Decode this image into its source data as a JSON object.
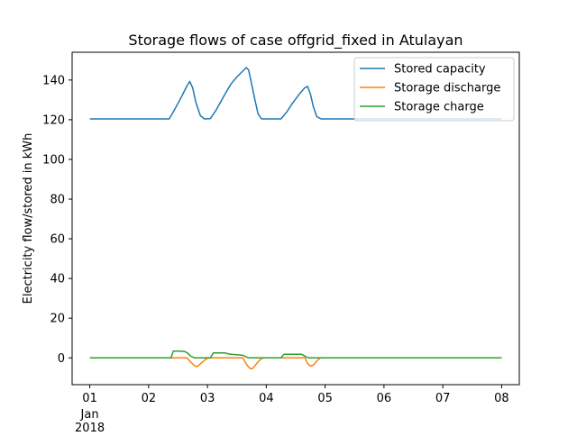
{
  "chart_data": {
    "type": "line",
    "title": "Storage flows of case offgrid_fixed in Atulayan",
    "xlabel": "",
    "ylabel": "Electricity flow/stored in kWh",
    "xlim": [
      -0.3,
      7.3
    ],
    "ylim": [
      -13.5,
      154
    ],
    "x_ticks": [
      {
        "x": 0,
        "label": "01",
        "sub": [
          "Jan",
          "2018"
        ]
      },
      {
        "x": 1,
        "label": "02",
        "sub": []
      },
      {
        "x": 2,
        "label": "03",
        "sub": []
      },
      {
        "x": 3,
        "label": "04",
        "sub": []
      },
      {
        "x": 4,
        "label": "05",
        "sub": []
      },
      {
        "x": 5,
        "label": "06",
        "sub": []
      },
      {
        "x": 6,
        "label": "07",
        "sub": []
      },
      {
        "x": 7,
        "label": "08",
        "sub": []
      }
    ],
    "y_ticks": [
      0,
      20,
      40,
      60,
      80,
      100,
      120,
      140
    ],
    "grid": false,
    "legend_position": "top-right",
    "series": [
      {
        "name": "Stored capacity",
        "color": "#1f77b4",
        "points": [
          [
            0.0,
            120.4
          ],
          [
            1.35,
            120.4
          ],
          [
            1.42,
            124
          ],
          [
            1.55,
            131
          ],
          [
            1.65,
            137
          ],
          [
            1.7,
            139.3
          ],
          [
            1.75,
            136
          ],
          [
            1.8,
            129
          ],
          [
            1.88,
            122
          ],
          [
            1.95,
            120.4
          ],
          [
            2.05,
            120.6
          ],
          [
            2.15,
            125
          ],
          [
            2.3,
            133
          ],
          [
            2.4,
            138
          ],
          [
            2.5,
            141.5
          ],
          [
            2.6,
            144.5
          ],
          [
            2.66,
            146.3
          ],
          [
            2.7,
            145
          ],
          [
            2.75,
            138
          ],
          [
            2.8,
            131
          ],
          [
            2.86,
            123
          ],
          [
            2.92,
            120.4
          ],
          [
            3.25,
            120.4
          ],
          [
            3.35,
            124
          ],
          [
            3.45,
            128.5
          ],
          [
            3.55,
            132.5
          ],
          [
            3.65,
            136
          ],
          [
            3.7,
            136.8
          ],
          [
            3.75,
            133
          ],
          [
            3.8,
            126.5
          ],
          [
            3.86,
            121.5
          ],
          [
            3.93,
            120.4
          ],
          [
            7.0,
            120.4
          ]
        ]
      },
      {
        "name": "Storage discharge",
        "color": "#ff7f0e",
        "points": [
          [
            0.0,
            0
          ],
          [
            1.65,
            0
          ],
          [
            1.72,
            -2.2
          ],
          [
            1.78,
            -4
          ],
          [
            1.82,
            -4.4
          ],
          [
            1.88,
            -3
          ],
          [
            1.95,
            -1.2
          ],
          [
            2.0,
            -0.2
          ],
          [
            2.05,
            0
          ],
          [
            2.6,
            0
          ],
          [
            2.67,
            -3.5
          ],
          [
            2.72,
            -5.3
          ],
          [
            2.76,
            -5.5
          ],
          [
            2.8,
            -4.2
          ],
          [
            2.86,
            -2
          ],
          [
            2.92,
            -0.3
          ],
          [
            2.96,
            0
          ],
          [
            3.66,
            0
          ],
          [
            3.7,
            -2.8
          ],
          [
            3.75,
            -4.2
          ],
          [
            3.8,
            -3.6
          ],
          [
            3.86,
            -1.5
          ],
          [
            3.92,
            0
          ],
          [
            7.0,
            0
          ]
        ]
      },
      {
        "name": "Storage charge",
        "color": "#2ca02c",
        "points": [
          [
            0.0,
            0
          ],
          [
            1.38,
            0
          ],
          [
            1.42,
            3.4
          ],
          [
            1.52,
            3.4
          ],
          [
            1.62,
            3.1
          ],
          [
            1.66,
            2.5
          ],
          [
            1.72,
            0.8
          ],
          [
            1.78,
            0
          ],
          [
            2.05,
            0
          ],
          [
            2.1,
            2.5
          ],
          [
            2.3,
            2.5
          ],
          [
            2.38,
            1.9
          ],
          [
            2.6,
            1.3
          ],
          [
            2.65,
            0.6
          ],
          [
            2.7,
            0
          ],
          [
            3.25,
            0
          ],
          [
            3.3,
            1.8
          ],
          [
            3.6,
            1.8
          ],
          [
            3.68,
            0.5
          ],
          [
            3.72,
            0
          ],
          [
            7.0,
            0
          ]
        ]
      }
    ]
  }
}
